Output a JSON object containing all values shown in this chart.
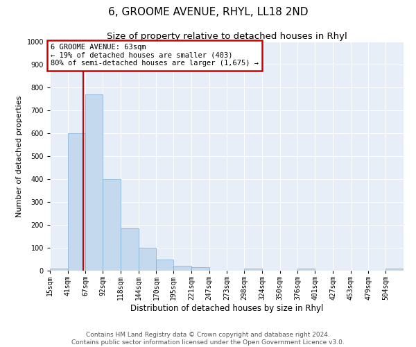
{
  "title": "6, GROOME AVENUE, RHYL, LL18 2ND",
  "subtitle": "Size of property relative to detached houses in Rhyl",
  "xlabel": "Distribution of detached houses by size in Rhyl",
  "ylabel": "Number of detached properties",
  "footer_line1": "Contains HM Land Registry data © Crown copyright and database right 2024.",
  "footer_line2": "Contains public sector information licensed under the Open Government Licence v3.0.",
  "annotation_line1": "6 GROOME AVENUE: 63sqm",
  "annotation_line2": "← 19% of detached houses are smaller (403)",
  "annotation_line3": "80% of semi-detached houses are larger (1,675) →",
  "bar_color": "#c5d9ee",
  "bar_edge_color": "#7aadd4",
  "vline_color": "#cc0000",
  "vline_x": 63,
  "annotation_box_edgecolor": "#cc0000",
  "background_color": "#e8eef8",
  "ylim": [
    0,
    1000
  ],
  "yticks": [
    0,
    100,
    200,
    300,
    400,
    500,
    600,
    700,
    800,
    900,
    1000
  ],
  "bins": [
    15,
    41,
    67,
    92,
    118,
    144,
    170,
    195,
    221,
    247,
    273,
    298,
    324,
    350,
    376,
    401,
    427,
    453,
    479,
    504,
    530
  ],
  "bar_heights": [
    10,
    600,
    770,
    400,
    185,
    100,
    50,
    20,
    15,
    0,
    0,
    10,
    0,
    0,
    10,
    0,
    0,
    0,
    0,
    10
  ],
  "title_fontsize": 11,
  "subtitle_fontsize": 9.5,
  "xlabel_fontsize": 8.5,
  "ylabel_fontsize": 8,
  "tick_fontsize": 7,
  "annotation_fontsize": 7.5,
  "footer_fontsize": 6.5
}
